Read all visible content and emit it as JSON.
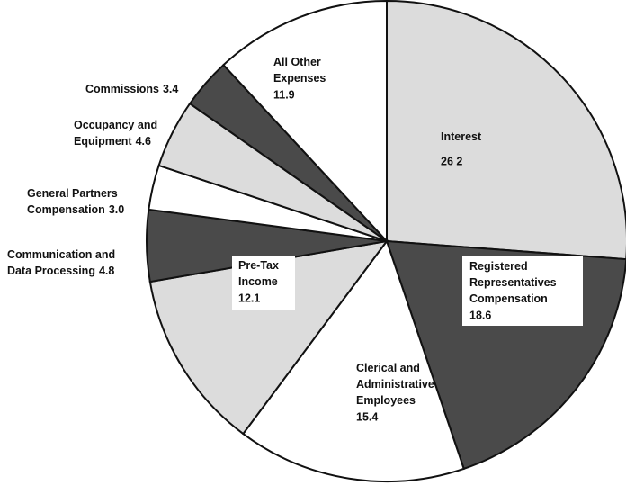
{
  "chart_data": {
    "type": "pie",
    "categories": [
      [
        "Interest"
      ],
      [
        "Registered",
        "Representatives",
        "Compensation"
      ],
      [
        "Clerical and",
        "Administrative",
        "Employees"
      ],
      [
        "Pre-Tax",
        "Income"
      ],
      [
        "Communication and",
        "Data Processing"
      ],
      [
        "General Partners",
        "Compensation"
      ],
      [
        "Occupancy and",
        "Equipment"
      ],
      [
        "Commissions"
      ],
      [
        "All Other",
        "Expenses"
      ]
    ],
    "values": [
      26.2,
      18.6,
      15.4,
      12.1,
      4.8,
      3.0,
      4.6,
      3.4,
      11.9
    ],
    "value_labels": [
      "26 2",
      "18.6",
      "15.4",
      "12.1",
      "4.8",
      "3.0",
      "4.6",
      "3.4",
      "11.9"
    ],
    "colors": [
      "#dcdcdc",
      "#4a4a4a",
      "#ffffff",
      "#dcdcdc",
      "#4a4a4a",
      "#ffffff",
      "#dcdcdc",
      "#4a4a4a",
      "#ffffff"
    ]
  }
}
